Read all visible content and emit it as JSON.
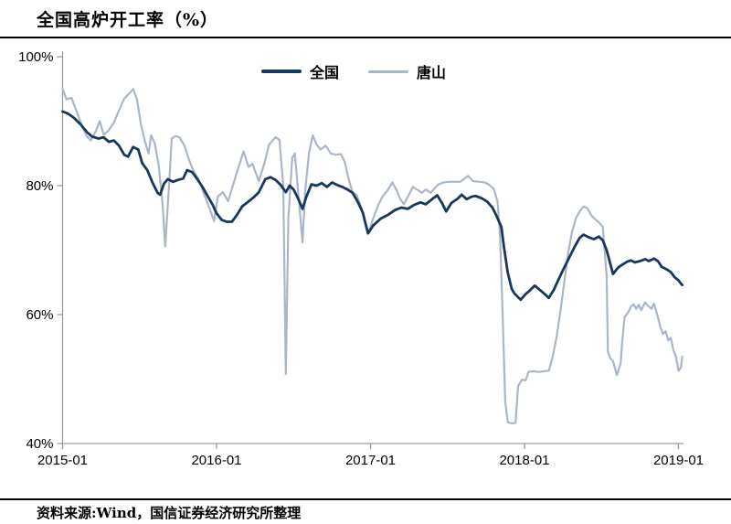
{
  "title": "全国高炉开工率（%）",
  "footer": {
    "source": "资料来源:Wind，国信证券经济研究所整理"
  },
  "colors": {
    "series_national": "#17375e",
    "series_tangshan": "#a9b6c8",
    "axis": "#9b9b9b",
    "divider": "#000000",
    "text": "#000000"
  },
  "chart_data": {
    "type": "line",
    "title": "全国高炉开工率（%）",
    "xlabel": "",
    "ylabel": "",
    "grid": false,
    "legend_position": "top-center",
    "x_axis": {
      "unit": "months since 2015-01",
      "range": [
        0,
        48.3
      ],
      "ticks": [
        {
          "t": 0,
          "label": "2015-01"
        },
        {
          "t": 12,
          "label": "2016-01"
        },
        {
          "t": 24,
          "label": "2017-01"
        },
        {
          "t": 36,
          "label": "2018-01"
        },
        {
          "t": 48,
          "label": "2019-01"
        }
      ]
    },
    "y_axis": {
      "unit": "percent",
      "range": [
        40,
        100
      ],
      "ticks": [
        {
          "v": 100,
          "label": "100%"
        },
        {
          "v": 80,
          "label": "80%"
        },
        {
          "v": 60,
          "label": "60%"
        },
        {
          "v": 40,
          "label": "40%"
        }
      ]
    },
    "series": [
      {
        "name": "全国",
        "color": "#17375e",
        "width": 2.8,
        "points": [
          [
            0,
            91.5
          ],
          [
            0.4,
            91.2
          ],
          [
            0.9,
            90.5
          ],
          [
            1.4,
            89.5
          ],
          [
            1.9,
            88.3
          ],
          [
            2.3,
            87.6
          ],
          [
            2.8,
            87.3
          ],
          [
            3.2,
            87.5
          ],
          [
            3.6,
            86.8
          ],
          [
            4.0,
            87.0
          ],
          [
            4.4,
            86.2
          ],
          [
            4.8,
            84.8
          ],
          [
            5.1,
            84.5
          ],
          [
            5.5,
            86.0
          ],
          [
            5.9,
            85.6
          ],
          [
            6.2,
            83.5
          ],
          [
            6.6,
            82.4
          ],
          [
            7.0,
            80.5
          ],
          [
            7.4,
            78.9
          ],
          [
            7.6,
            78.6
          ],
          [
            7.9,
            80.3
          ],
          [
            8.2,
            81.0
          ],
          [
            8.6,
            80.6
          ],
          [
            9.0,
            80.9
          ],
          [
            9.4,
            81.1
          ],
          [
            9.7,
            82.4
          ],
          [
            10.1,
            82.1
          ],
          [
            10.5,
            81.0
          ],
          [
            10.9,
            79.8
          ],
          [
            11.3,
            78.4
          ],
          [
            11.7,
            77.0
          ],
          [
            12.0,
            75.7
          ],
          [
            12.4,
            74.7
          ],
          [
            12.8,
            74.4
          ],
          [
            13.2,
            74.4
          ],
          [
            13.6,
            75.5
          ],
          [
            14.0,
            76.8
          ],
          [
            14.4,
            77.4
          ],
          [
            14.9,
            78.2
          ],
          [
            15.3,
            79.0
          ],
          [
            15.8,
            81.0
          ],
          [
            16.2,
            81.3
          ],
          [
            16.6,
            80.9
          ],
          [
            17.0,
            80.1
          ],
          [
            17.4,
            79.0
          ],
          [
            17.7,
            80.0
          ],
          [
            18.0,
            79.4
          ],
          [
            18.4,
            77.8
          ],
          [
            18.7,
            76.4
          ],
          [
            19.0,
            78.3
          ],
          [
            19.4,
            80.2
          ],
          [
            19.8,
            80.0
          ],
          [
            20.2,
            80.4
          ],
          [
            20.6,
            79.8
          ],
          [
            21.0,
            80.5
          ],
          [
            21.4,
            80.1
          ],
          [
            21.8,
            79.8
          ],
          [
            22.2,
            79.4
          ],
          [
            22.6,
            78.9
          ],
          [
            23.0,
            77.5
          ],
          [
            23.4,
            75.8
          ],
          [
            23.8,
            72.6
          ],
          [
            24.2,
            73.8
          ],
          [
            24.8,
            74.9
          ],
          [
            25.3,
            75.4
          ],
          [
            25.9,
            76.2
          ],
          [
            26.4,
            76.6
          ],
          [
            26.9,
            76.4
          ],
          [
            27.4,
            77.0
          ],
          [
            27.9,
            77.4
          ],
          [
            28.3,
            77.1
          ],
          [
            28.8,
            77.9
          ],
          [
            29.2,
            78.5
          ],
          [
            29.6,
            77.2
          ],
          [
            29.9,
            76.0
          ],
          [
            30.3,
            77.3
          ],
          [
            30.8,
            78.0
          ],
          [
            31.1,
            78.6
          ],
          [
            31.5,
            77.9
          ],
          [
            31.9,
            78.3
          ],
          [
            32.2,
            78.4
          ],
          [
            32.7,
            78.0
          ],
          [
            33.1,
            77.5
          ],
          [
            33.5,
            76.6
          ],
          [
            33.8,
            75.4
          ],
          [
            34.2,
            73.6
          ],
          [
            34.4,
            70.5
          ],
          [
            34.7,
            66.5
          ],
          [
            35.0,
            64.0
          ],
          [
            35.2,
            63.3
          ],
          [
            35.7,
            62.3
          ],
          [
            36.1,
            63.2
          ],
          [
            36.4,
            63.7
          ],
          [
            36.8,
            64.5
          ],
          [
            37.1,
            64.0
          ],
          [
            37.5,
            63.3
          ],
          [
            37.9,
            62.6
          ],
          [
            38.3,
            63.9
          ],
          [
            38.6,
            65.2
          ],
          [
            39.0,
            66.9
          ],
          [
            39.4,
            68.5
          ],
          [
            39.9,
            70.5
          ],
          [
            40.3,
            71.9
          ],
          [
            40.6,
            72.4
          ],
          [
            41.0,
            72.0
          ],
          [
            41.4,
            71.7
          ],
          [
            41.8,
            72.1
          ],
          [
            42.1,
            71.5
          ],
          [
            42.4,
            70.0
          ],
          [
            42.9,
            66.3
          ],
          [
            43.3,
            67.3
          ],
          [
            43.6,
            67.7
          ],
          [
            44.0,
            68.2
          ],
          [
            44.3,
            68.4
          ],
          [
            44.6,
            68.1
          ],
          [
            45.0,
            68.3
          ],
          [
            45.4,
            68.6
          ],
          [
            45.7,
            68.3
          ],
          [
            46.1,
            68.7
          ],
          [
            46.4,
            68.3
          ],
          [
            46.7,
            67.4
          ],
          [
            47.1,
            67.0
          ],
          [
            47.4,
            66.6
          ],
          [
            47.7,
            65.8
          ],
          [
            48.0,
            65.3
          ],
          [
            48.2,
            64.8
          ],
          [
            48.3,
            64.6
          ]
        ]
      },
      {
        "name": "唐山",
        "color": "#a9b6c8",
        "width": 2.2,
        "points": [
          [
            0,
            95.0
          ],
          [
            0.3,
            93.4
          ],
          [
            0.7,
            93.6
          ],
          [
            1.1,
            91.5
          ],
          [
            1.5,
            89.3
          ],
          [
            1.9,
            87.6
          ],
          [
            2.2,
            87.0
          ],
          [
            2.6,
            88.5
          ],
          [
            2.9,
            90.0
          ],
          [
            3.2,
            87.9
          ],
          [
            3.6,
            88.6
          ],
          [
            4.0,
            89.8
          ],
          [
            4.4,
            91.7
          ],
          [
            4.8,
            93.5
          ],
          [
            5.2,
            94.3
          ],
          [
            5.5,
            95.0
          ],
          [
            5.8,
            93.4
          ],
          [
            6.1,
            89.5
          ],
          [
            6.4,
            87.0
          ],
          [
            6.7,
            85.0
          ],
          [
            6.9,
            87.8
          ],
          [
            7.2,
            86.5
          ],
          [
            7.5,
            83.0
          ],
          [
            7.8,
            77.0
          ],
          [
            8.0,
            70.6
          ],
          [
            8.3,
            80.0
          ],
          [
            8.5,
            87.3
          ],
          [
            8.8,
            87.7
          ],
          [
            9.1,
            87.5
          ],
          [
            9.5,
            86.2
          ],
          [
            9.8,
            84.3
          ],
          [
            10.2,
            82.3
          ],
          [
            10.6,
            81.0
          ],
          [
            11.0,
            78.8
          ],
          [
            11.5,
            76.2
          ],
          [
            11.8,
            74.5
          ],
          [
            12.1,
            78.3
          ],
          [
            12.5,
            79.0
          ],
          [
            12.9,
            77.6
          ],
          [
            13.3,
            80.2
          ],
          [
            13.7,
            82.8
          ],
          [
            14.1,
            85.3
          ],
          [
            14.5,
            82.9
          ],
          [
            14.8,
            83.4
          ],
          [
            15.3,
            80.7
          ],
          [
            15.7,
            83.3
          ],
          [
            16.1,
            86.4
          ],
          [
            16.6,
            87.5
          ],
          [
            16.9,
            87.1
          ],
          [
            17.2,
            80.0
          ],
          [
            17.4,
            50.8
          ],
          [
            17.6,
            75.0
          ],
          [
            17.9,
            84.3
          ],
          [
            18.1,
            85.0
          ],
          [
            18.4,
            78.0
          ],
          [
            18.7,
            71.2
          ],
          [
            18.9,
            79.0
          ],
          [
            19.2,
            85.0
          ],
          [
            19.5,
            87.8
          ],
          [
            19.8,
            86.4
          ],
          [
            20.1,
            85.6
          ],
          [
            20.5,
            86.2
          ],
          [
            20.9,
            85.0
          ],
          [
            21.3,
            84.8
          ],
          [
            21.7,
            84.9
          ],
          [
            22.0,
            83.6
          ],
          [
            22.3,
            81.0
          ],
          [
            22.6,
            79.0
          ],
          [
            22.9,
            78.6
          ],
          [
            23.3,
            76.5
          ],
          [
            23.6,
            74.0
          ],
          [
            23.9,
            72.7
          ],
          [
            24.1,
            74.3
          ],
          [
            24.5,
            76.5
          ],
          [
            24.9,
            78.2
          ],
          [
            25.3,
            79.2
          ],
          [
            25.7,
            80.5
          ],
          [
            26.0,
            79.4
          ],
          [
            26.3,
            78.0
          ],
          [
            26.6,
            77.1
          ],
          [
            27.0,
            78.6
          ],
          [
            27.3,
            79.8
          ],
          [
            27.7,
            79.3
          ],
          [
            28.0,
            78.9
          ],
          [
            28.3,
            79.4
          ],
          [
            28.7,
            78.9
          ],
          [
            29.0,
            79.6
          ],
          [
            29.3,
            80.2
          ],
          [
            29.7,
            80.5
          ],
          [
            30.1,
            80.6
          ],
          [
            30.6,
            80.6
          ],
          [
            31.0,
            80.6
          ],
          [
            31.6,
            81.5
          ],
          [
            32.0,
            80.7
          ],
          [
            32.5,
            80.6
          ],
          [
            32.9,
            80.5
          ],
          [
            33.2,
            80.2
          ],
          [
            33.6,
            79.5
          ],
          [
            33.9,
            77.5
          ],
          [
            34.1,
            72.0
          ],
          [
            34.3,
            60.0
          ],
          [
            34.5,
            46.5
          ],
          [
            34.7,
            43.3
          ],
          [
            35.0,
            43.1
          ],
          [
            35.3,
            43.2
          ],
          [
            35.5,
            48.9
          ],
          [
            35.8,
            49.9
          ],
          [
            36.1,
            49.8
          ],
          [
            36.3,
            51.1
          ],
          [
            36.7,
            51.2
          ],
          [
            37.1,
            51.1
          ],
          [
            37.5,
            51.2
          ],
          [
            37.9,
            51.3
          ],
          [
            38.2,
            53.5
          ],
          [
            38.5,
            56.5
          ],
          [
            38.8,
            60.5
          ],
          [
            39.1,
            65.0
          ],
          [
            39.4,
            69.5
          ],
          [
            39.7,
            72.8
          ],
          [
            40.0,
            74.9
          ],
          [
            40.3,
            76.0
          ],
          [
            40.6,
            76.8
          ],
          [
            40.9,
            76.5
          ],
          [
            41.2,
            75.4
          ],
          [
            41.5,
            74.8
          ],
          [
            41.8,
            74.3
          ],
          [
            42.1,
            73.6
          ],
          [
            42.4,
            66.0
          ],
          [
            42.5,
            54.2
          ],
          [
            42.7,
            53.2
          ],
          [
            42.9,
            52.8
          ],
          [
            43.2,
            50.6
          ],
          [
            43.5,
            52.5
          ],
          [
            43.6,
            55.3
          ],
          [
            43.8,
            59.6
          ],
          [
            44.1,
            60.4
          ],
          [
            44.3,
            61.2
          ],
          [
            44.5,
            61.6
          ],
          [
            44.7,
            60.9
          ],
          [
            44.9,
            61.5
          ],
          [
            45.1,
            60.7
          ],
          [
            45.4,
            61.9
          ],
          [
            45.6,
            61.4
          ],
          [
            45.9,
            60.9
          ],
          [
            46.1,
            61.7
          ],
          [
            46.4,
            59.6
          ],
          [
            46.6,
            58.0
          ],
          [
            46.8,
            57.0
          ],
          [
            47.0,
            57.4
          ],
          [
            47.2,
            56.0
          ],
          [
            47.4,
            56.4
          ],
          [
            47.6,
            54.5
          ],
          [
            47.8,
            53.5
          ],
          [
            48.0,
            51.3
          ],
          [
            48.2,
            51.8
          ],
          [
            48.3,
            53.5
          ]
        ]
      }
    ]
  }
}
